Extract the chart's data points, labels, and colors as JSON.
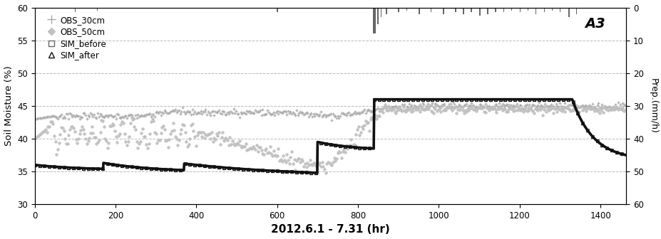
{
  "title": "A3",
  "xlabel": "2012.6.1 - 7.31 (hr)",
  "ylabel_left": "Soil Moisture (%)",
  "ylabel_right": "Prep.(mm/h)",
  "xlim": [
    0,
    1464
  ],
  "ylim_left": [
    30,
    60
  ],
  "ylim_right": [
    0,
    60
  ],
  "yticks_left": [
    30,
    35,
    40,
    45,
    50,
    55,
    60
  ],
  "yticks_right": [
    0,
    10,
    20,
    30,
    40,
    50,
    60
  ],
  "xticks": [
    0,
    200,
    400,
    600,
    800,
    1000,
    1200,
    1400
  ],
  "legend_labels": [
    "OBS_30cm",
    "OBS_50cm",
    "SIM_before",
    "SIM_after"
  ],
  "color_obs30": "#aaaaaa",
  "color_obs50": "#c0c0c0",
  "color_sim_before": "#666666",
  "color_sim_after": "#111111",
  "color_precip": "#666666"
}
